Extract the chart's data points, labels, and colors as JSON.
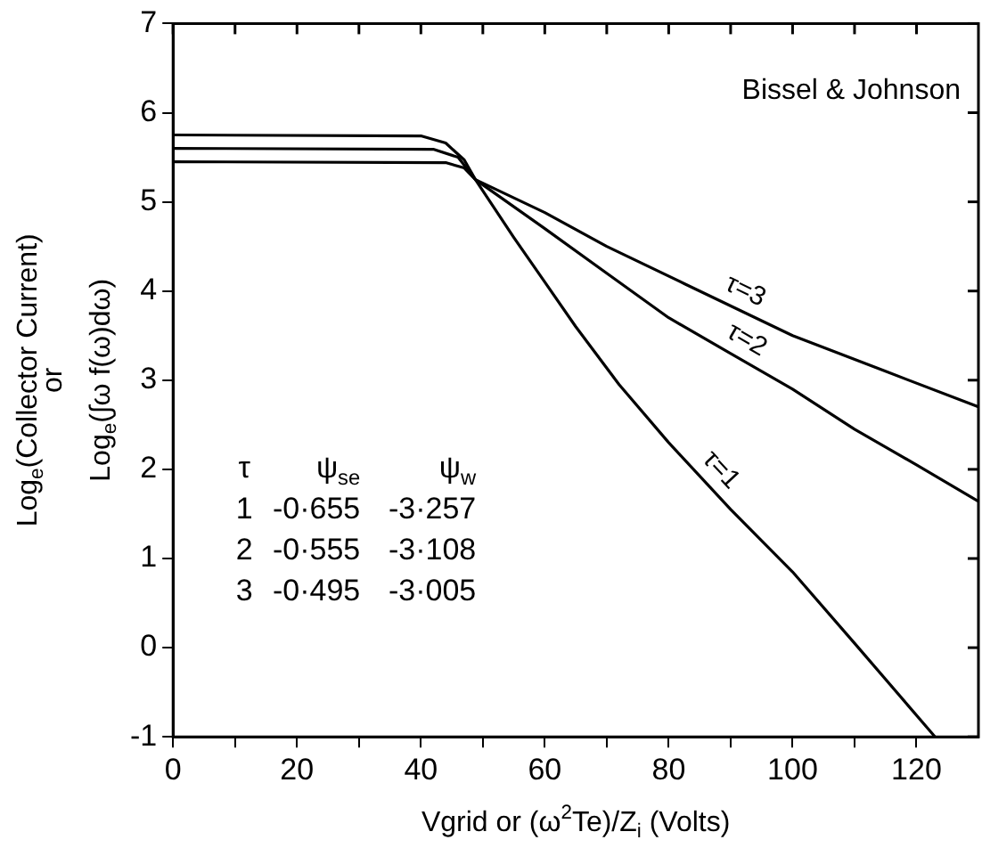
{
  "chart_data": {
    "type": "line",
    "xlabel": "Vgrid or (ω$^{2}$Te)/Z$_{i}$ (Volts)",
    "ylabel": "Log$_{e}$(Collector Current)\nor\nLog$_{e}$(∫ω f(ω)dω)",
    "xlim": [
      0,
      130
    ],
    "ylim": [
      -1,
      7
    ],
    "xticks": [
      0,
      {
        "value": 10,
        "label": null
      },
      20,
      {
        "value": 30,
        "label": null
      },
      40,
      {
        "value": 50,
        "label": null
      },
      60,
      {
        "value": 70,
        "label": null
      },
      80,
      {
        "value": 90,
        "label": null
      },
      100,
      {
        "value": 110,
        "label": null
      },
      120
    ],
    "yticks": [
      -1,
      0,
      1,
      2,
      3,
      4,
      5,
      6,
      7
    ],
    "grid": false,
    "legend": false,
    "marker": "none",
    "line_style": "solid",
    "annotations": [
      "Bissel & Johnson",
      "τ ψ$_{se}$ ψ$_{w}$",
      "1 -0·655 -3·257",
      "2 -0·555 -3·108",
      "3 -0·495 -3·005"
    ],
    "series": [
      {
        "name": "τ=1",
        "color": "#000000",
        "x": [
          0,
          44,
          47,
          48.8,
          55,
          60,
          65,
          72,
          80,
          90,
          100,
          110,
          123
        ],
        "values": [
          5.45,
          5.44,
          5.38,
          5.25,
          4.6,
          4.1,
          3.6,
          2.95,
          2.3,
          1.55,
          0.85,
          0.05,
          -1.0
        ]
      },
      {
        "name": "τ=2",
        "color": "#000000",
        "x": [
          0,
          42,
          46,
          48.8,
          60,
          70,
          80,
          90,
          100,
          110,
          120,
          130
        ],
        "values": [
          5.6,
          5.59,
          5.5,
          5.25,
          4.7,
          4.2,
          3.7,
          3.3,
          2.9,
          2.45,
          2.05,
          1.64
        ]
      },
      {
        "name": "τ=3",
        "color": "#000000",
        "x": [
          0,
          40,
          44,
          47,
          48.8,
          60,
          70,
          82.6,
          100,
          115,
          130
        ],
        "values": [
          5.75,
          5.74,
          5.66,
          5.47,
          5.25,
          4.88,
          4.5,
          4.08,
          3.5,
          3.1,
          2.7
        ]
      }
    ]
  }
}
